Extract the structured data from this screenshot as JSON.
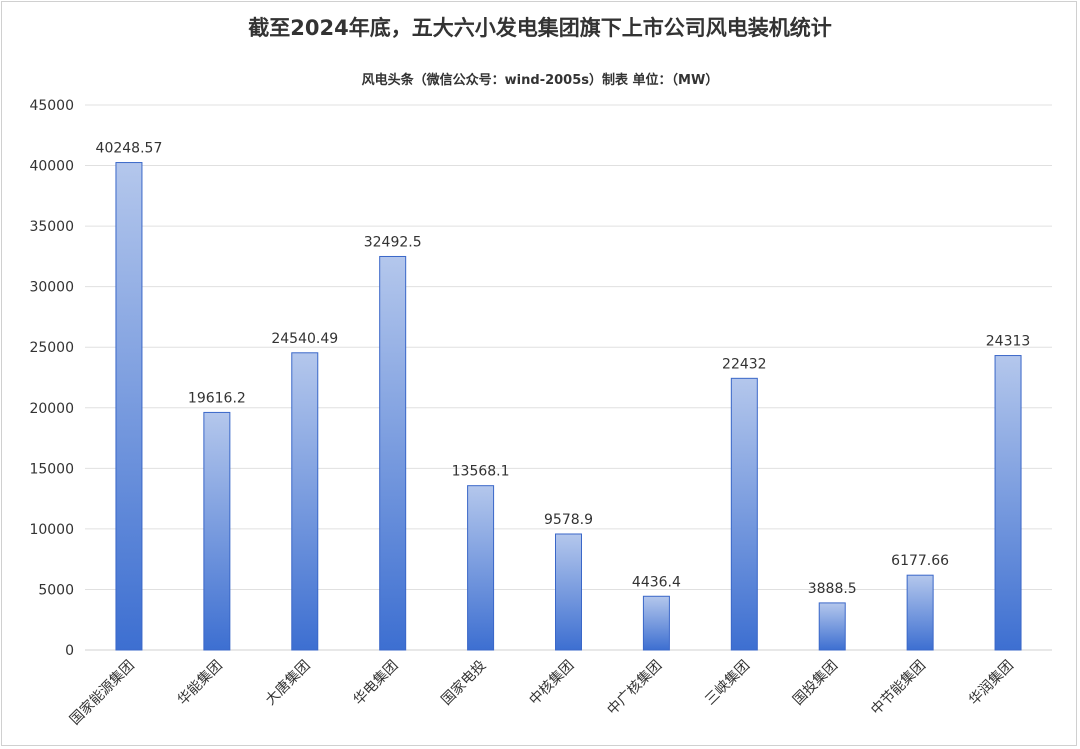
{
  "chart_data": {
    "type": "bar",
    "title": "截至2024年底，五大六小发电集团旗下上市公司风电装机统计",
    "subtitle": "风电头条（微信公众号：wind-2005s）制表     单位：（MW）",
    "categories": [
      "国家能源集团",
      "华能集团",
      "大唐集团",
      "华电集团",
      "国家电投",
      "中核集团",
      "中广核集团",
      "三峡集团",
      "国投集团",
      "中节能集团",
      "华润集团"
    ],
    "values": [
      40248.57,
      19616.2,
      24540.49,
      32492.5,
      13568.1,
      9578.9,
      4436.4,
      22432,
      3888.5,
      6177.66,
      24313
    ],
    "value_labels": [
      "40248.57",
      "19616.2",
      "24540.49",
      "32492.5",
      "13568.1",
      "9578.9",
      "4436.4",
      "22432",
      "3888.5",
      "6177.66",
      "24313"
    ],
    "yticks": [
      "0",
      "5000",
      "10000",
      "15000",
      "20000",
      "25000",
      "30000",
      "35000",
      "40000",
      "45000"
    ],
    "ylim": [
      0,
      45000
    ],
    "grid": true,
    "colors": {
      "bar_top": "#b4c7ec",
      "bar_bottom": "#3d6fd1",
      "bar_edge": "#3a67c8",
      "grid": "#e0e0e0"
    }
  }
}
